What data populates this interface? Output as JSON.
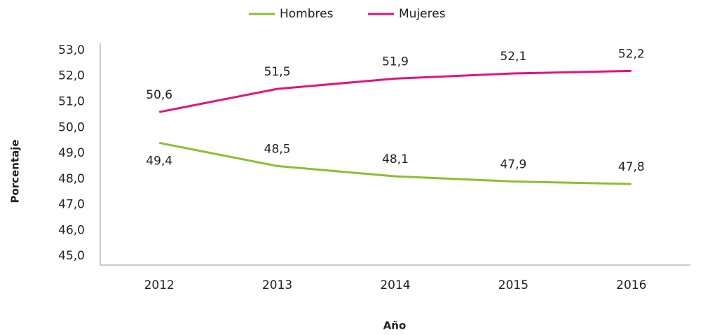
{
  "chart_data": {
    "type": "line",
    "x_label": "Año",
    "y_label": "Porcentaje",
    "categories": [
      "2012",
      "2013",
      "2014",
      "2015",
      "2016"
    ],
    "series": [
      {
        "name": "Hombres",
        "color": "#8cbf2f",
        "values": [
          49.4,
          48.5,
          48.1,
          47.9,
          47.8
        ],
        "value_labels": [
          "49,4",
          "48,5",
          "48,1",
          "47,9",
          "47,8"
        ]
      },
      {
        "name": "Mujeres",
        "color": "#e2147b",
        "values": [
          50.6,
          51.5,
          51.9,
          52.1,
          52.2
        ],
        "value_labels": [
          "50,6",
          "51,5",
          "51,9",
          "52,1",
          "52,2"
        ]
      }
    ],
    "ylim": [
      44.65,
      53.27
    ],
    "yticks": [
      {
        "value": 45,
        "label": "45,0"
      },
      {
        "value": 46,
        "label": "46,0"
      },
      {
        "value": 47,
        "label": "47,0"
      },
      {
        "value": 48,
        "label": "48,0"
      },
      {
        "value": 49,
        "label": "49,0"
      },
      {
        "value": 50,
        "label": "50,0"
      },
      {
        "value": 51,
        "label": "51,0"
      },
      {
        "value": 52,
        "label": "52,0"
      },
      {
        "value": 53,
        "label": "53,0"
      }
    ],
    "grid": false,
    "legend": "top"
  }
}
